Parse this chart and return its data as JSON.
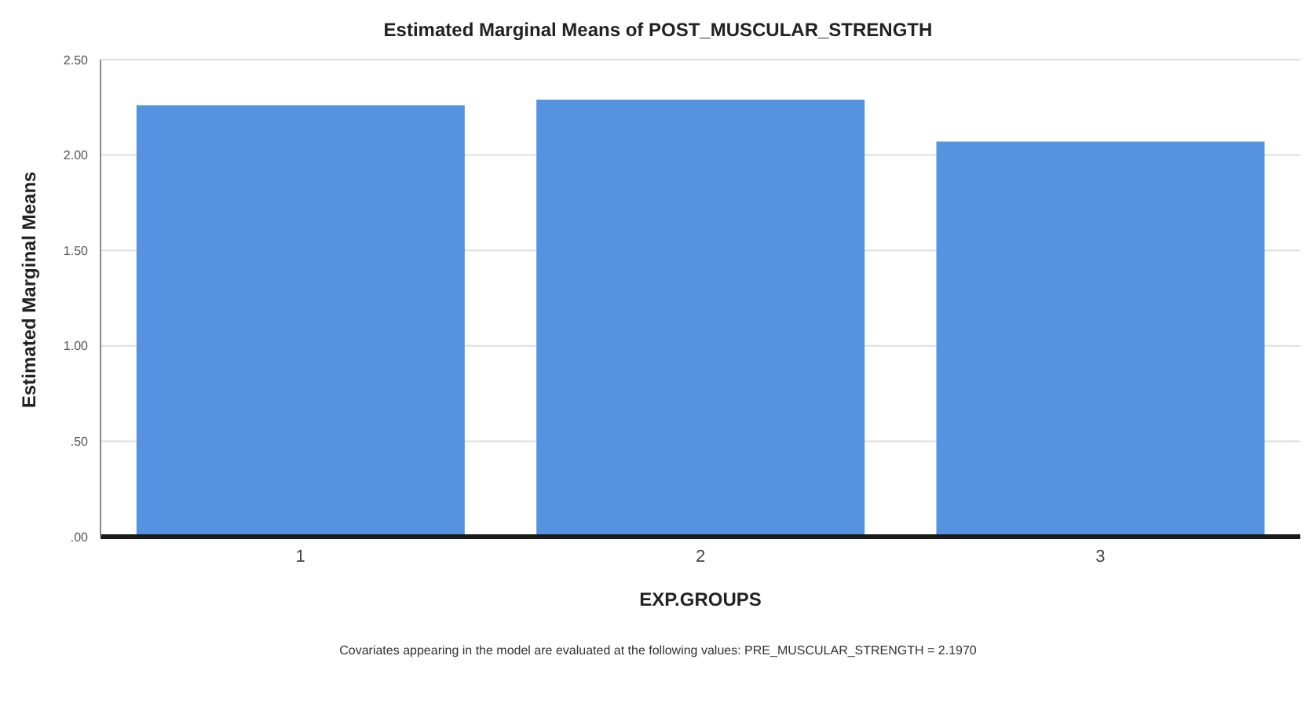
{
  "chart_data": {
    "type": "bar",
    "title": "Estimated Marginal Means of POST_MUSCULAR_STRENGTH",
    "xlabel": "EXP.GROUPS",
    "ylabel": "Estimated Marginal Means",
    "categories": [
      "1",
      "2",
      "3"
    ],
    "values": [
      2.26,
      2.29,
      2.07
    ],
    "color": "#5592e0",
    "ylim": [
      0,
      2.5
    ],
    "yticks": [
      {
        "value": 0,
        "label": ".00"
      },
      {
        "value": 0.5,
        "label": ".50"
      },
      {
        "value": 1,
        "label": "1.00"
      },
      {
        "value": 1.5,
        "label": "1.50"
      },
      {
        "value": 2,
        "label": "2.00"
      },
      {
        "value": 2.5,
        "label": "2.50"
      }
    ],
    "grid": "y",
    "annotations": [
      "Covariates appearing in the model are evaluated at the following values: PRE_MUSCULAR_STRENGTH = 2.1970"
    ]
  }
}
